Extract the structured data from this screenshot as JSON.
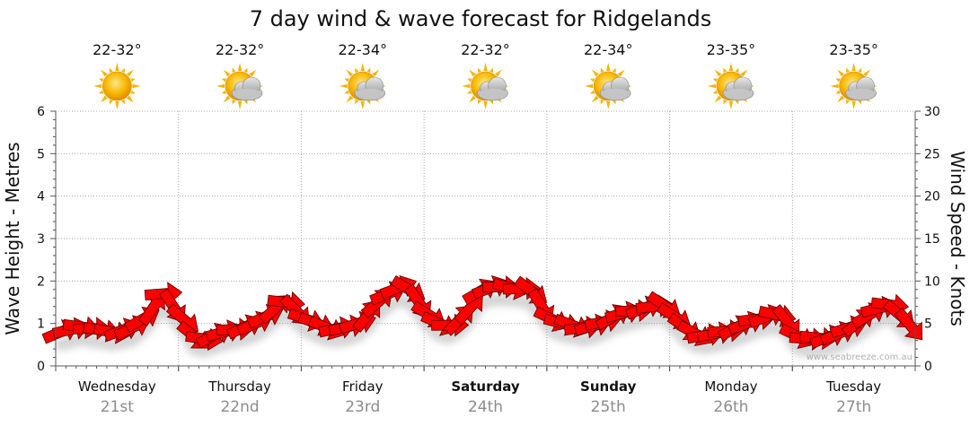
{
  "chart_data": {
    "type": "line",
    "title": "7 day wind & wave forecast for Ridgelands",
    "ylabel_left": "Wave Height - Metres",
    "ylabel_right": "Wind Speed - Knots",
    "ylim_left": [
      0,
      6
    ],
    "ylim_right": [
      0,
      30
    ],
    "yticks_left": [
      "0",
      "1",
      "2",
      "3",
      "4",
      "5",
      "6"
    ],
    "yticks_right": [
      "0",
      "5",
      "10",
      "15",
      "20",
      "25",
      "30"
    ],
    "grid": true,
    "watermark": "www.seabreeze.com.au",
    "days": [
      {
        "name": "Wednesday",
        "date": "21st",
        "temp": "22-32°",
        "icon": "sunny-icon",
        "bold": false
      },
      {
        "name": "Thursday",
        "date": "22nd",
        "temp": "22-32°",
        "icon": "partly-cloudy-icon",
        "bold": false
      },
      {
        "name": "Friday",
        "date": "23rd",
        "temp": "22-34°",
        "icon": "partly-cloudy-icon",
        "bold": false
      },
      {
        "name": "Saturday",
        "date": "24th",
        "temp": "22-32°",
        "icon": "partly-cloudy-icon",
        "bold": true
      },
      {
        "name": "Sunday",
        "date": "25th",
        "temp": "22-34°",
        "icon": "partly-cloudy-icon",
        "bold": true
      },
      {
        "name": "Monday",
        "date": "26th",
        "temp": "23-35°",
        "icon": "partly-cloudy-icon",
        "bold": false
      },
      {
        "name": "Tuesday",
        "date": "27th",
        "temp": "23-35°",
        "icon": "partly-cloudy-icon",
        "bold": false
      }
    ],
    "series": [
      {
        "name": "Wind Speed - Knots",
        "color": "#ff0000",
        "marker": "wind-arrow",
        "points_per_day": 12,
        "values": [
          4,
          4.3,
          4.6,
          4.4,
          4.2,
          4,
          4.2,
          4.5,
          5.5,
          6.8,
          8.5,
          7,
          5.5,
          3.5,
          3.2,
          3.6,
          4,
          4.3,
          4.6,
          5,
          5.8,
          6.8,
          7.5,
          6.5,
          5.5,
          5,
          4.5,
          4.4,
          4.6,
          5,
          6,
          7.5,
          8.5,
          9.2,
          9,
          7.5,
          6,
          5,
          4.8,
          5.5,
          6.8,
          8.8,
          9.2,
          9.3,
          9.2,
          9.1,
          8.8,
          7,
          5.5,
          5,
          4.8,
          4.5,
          4.7,
          5.2,
          5.8,
          6.2,
          6.5,
          6.8,
          7,
          7.1,
          5.8,
          4.5,
          3.8,
          3.6,
          3.8,
          4.1,
          4.5,
          5,
          5.5,
          5.8,
          6,
          5.2,
          3.5,
          3.2,
          3.3,
          3.4,
          3.8,
          4.5,
          5.2,
          6,
          6.8,
          7.2,
          6,
          4.8
        ]
      }
    ]
  }
}
